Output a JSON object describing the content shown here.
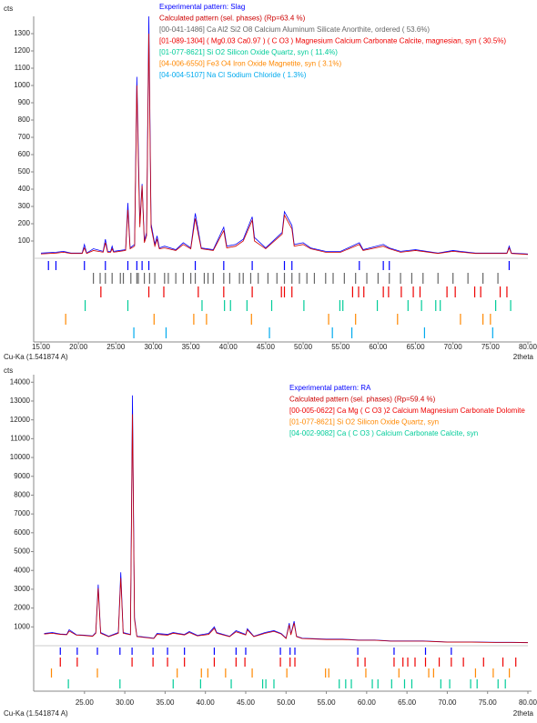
{
  "chart_data": [
    {
      "type": "line",
      "ylabel": "cts",
      "xlabel": "2theta",
      "note": "Cu-Ka (1.541874 A)",
      "xlim": [
        15,
        80
      ],
      "ylim": [
        0,
        1400
      ],
      "xticks": [
        {
          "value": 15,
          "label": "15.00"
        },
        {
          "value": 20,
          "label": "20.00"
        },
        {
          "value": 25,
          "label": "25.00"
        },
        {
          "value": 30,
          "label": "30.00"
        },
        {
          "value": 35,
          "label": "35.00"
        },
        {
          "value": 40,
          "label": "40.00"
        },
        {
          "value": 45,
          "label": "45.00"
        },
        {
          "value": 50,
          "label": "50.00"
        },
        {
          "value": 55,
          "label": "55.00"
        },
        {
          "value": 60,
          "label": "60.00"
        },
        {
          "value": 65,
          "label": "65.00"
        },
        {
          "value": 70,
          "label": "70.00"
        },
        {
          "value": 75,
          "label": "75.00"
        },
        {
          "value": 80,
          "label": "80.00"
        }
      ],
      "yticks": [
        100,
        200,
        300,
        400,
        500,
        600,
        700,
        800,
        900,
        1000,
        1100,
        1200,
        1300
      ],
      "x": [
        15,
        17,
        18,
        19,
        20.5,
        20.8,
        21.1,
        22,
        23.3,
        23.6,
        23.9,
        24.3,
        24.5,
        24.7,
        26.3,
        26.6,
        26.9,
        27.5,
        27.8,
        28.0,
        28.2,
        28.5,
        28.8,
        29.1,
        29.4,
        29.7,
        30.2,
        30.5,
        30.8,
        31.5,
        33,
        34,
        35,
        35.6,
        36.0,
        36.4,
        38,
        39.4,
        39.8,
        41,
        42,
        43.2,
        43.5,
        45,
        47.2,
        47.5,
        48.5,
        48.8,
        50,
        51,
        53,
        55,
        57.5,
        58,
        60.7,
        61.5,
        63,
        65,
        68,
        70,
        73,
        75,
        77.2,
        77.5,
        77.8,
        80
      ],
      "series": [
        {
          "name": "Experimental pattern: Slag",
          "color": "#0000ff",
          "values": [
            30,
            35,
            40,
            30,
            30,
            80,
            30,
            55,
            40,
            110,
            40,
            40,
            70,
            40,
            50,
            320,
            60,
            80,
            1050,
            620,
            200,
            430,
            100,
            150,
            1400,
            200,
            80,
            130,
            60,
            70,
            50,
            90,
            60,
            260,
            160,
            60,
            50,
            180,
            70,
            80,
            110,
            240,
            120,
            60,
            150,
            270,
            190,
            80,
            90,
            60,
            40,
            40,
            90,
            50,
            80,
            60,
            40,
            50,
            30,
            45,
            30,
            30,
            30,
            70,
            30,
            25
          ],
          "peaks": [
            16,
            17,
            20.8,
            23.6,
            26.6,
            27.8,
            28.5,
            29.4,
            35.6,
            39.4,
            43.2,
            47.5,
            48.5,
            57.5,
            60.7,
            61.5,
            77.5
          ]
        },
        {
          "name": "Calculated pattern (sel. phases) (Rp=63.4 %)",
          "color": "#cc0000",
          "values": [
            25,
            30,
            35,
            28,
            28,
            60,
            28,
            45,
            35,
            90,
            35,
            35,
            55,
            35,
            45,
            280,
            55,
            70,
            1000,
            560,
            180,
            420,
            90,
            130,
            1300,
            180,
            70,
            110,
            55,
            60,
            45,
            80,
            55,
            230,
            140,
            55,
            45,
            160,
            60,
            70,
            100,
            220,
            100,
            55,
            140,
            250,
            170,
            70,
            80,
            55,
            35,
            35,
            80,
            45,
            70,
            55,
            35,
            45,
            28,
            40,
            28,
            28,
            28,
            60,
            28,
            22
          ]
        }
      ],
      "phases": [
        {
          "name": "[00-041-1486] Ca Al2 Si2 O8 Calcium Aluminum Silicate Anorthite, ordered ( 53.6%)",
          "color": "#666666",
          "positions": [
            22.0,
            22.9,
            23.6,
            24.5,
            25.6,
            26.0,
            27.0,
            27.8,
            28.0,
            28.8,
            29.5,
            30.2,
            31.5,
            32.0,
            33.0,
            34.0,
            35.0,
            35.6,
            36.8,
            37.3,
            38.0,
            39.4,
            40.2,
            41.5,
            42.0,
            43.0,
            44.0,
            45.3,
            46.5,
            47.5,
            48.5,
            49.5,
            50.5,
            51.5,
            53.0,
            54.0,
            55.5,
            57.0,
            58.5,
            60.0,
            61.5,
            63.0,
            64.5,
            66.0,
            68.0,
            70.0,
            72.0,
            74.0,
            76.0
          ]
        },
        {
          "name": "[01-089-1304] ( Mg0.03 Ca0.97 ) ( C O3 ) Magnesium Calcium Carbonate Calcite, magnesian, syn ( 30.5%)",
          "color": "#ee0000",
          "positions": [
            23.0,
            29.4,
            31.4,
            36.0,
            39.4,
            43.2,
            47.1,
            47.5,
            48.5,
            56.6,
            57.4,
            58.1,
            60.7,
            61.4,
            63.1,
            64.7,
            65.6,
            69.2,
            70.3,
            72.9,
            73.7,
            76.3,
            77.2
          ]
        },
        {
          "name": "[01-077-8621] Si O2 Silicon Oxide Quartz, syn ( 11.4%)",
          "color": "#00cc99",
          "positions": [
            20.9,
            26.6,
            36.5,
            39.5,
            40.3,
            42.5,
            45.8,
            50.1,
            54.9,
            55.3,
            59.9,
            64.0,
            65.8,
            67.7,
            68.3,
            75.7,
            77.7
          ]
        },
        {
          "name": "[04-006-6550] Fe3 O4 Iron Oxide Magnetite, syn ( 3.1%)",
          "color": "#ff8800",
          "positions": [
            18.3,
            30.1,
            35.4,
            37.1,
            43.1,
            53.4,
            57.0,
            62.6,
            71.0,
            74.0,
            75.0
          ]
        },
        {
          "name": "[04-004-5107] Na Cl Sodium Chloride ( 1.3%)",
          "color": "#00aaee",
          "positions": [
            27.4,
            31.7,
            45.5,
            53.9,
            56.5,
            66.2,
            75.3
          ]
        }
      ]
    },
    {
      "type": "line",
      "ylabel": "cts",
      "xlabel": "2theta",
      "note": "Cu-Ka (1.541874 A)",
      "xlim": [
        19.6,
        80
      ],
      "ylim": [
        0,
        14400
      ],
      "xticks": [
        {
          "value": 25,
          "label": "25.00"
        },
        {
          "value": 30,
          "label": "30.00"
        },
        {
          "value": 35,
          "label": "35.00"
        },
        {
          "value": 40,
          "label": "40.00"
        },
        {
          "value": 45,
          "label": "45.00"
        },
        {
          "value": 50,
          "label": "50.00"
        },
        {
          "value": 55,
          "label": "55.00"
        },
        {
          "value": 60,
          "label": "60.00"
        },
        {
          "value": 65,
          "label": "65.00"
        },
        {
          "value": 70,
          "label": "70.00"
        },
        {
          "value": 75,
          "label": "75.00"
        },
        {
          "value": 80,
          "label": "80.00"
        }
      ],
      "yticks": [
        1000,
        2000,
        3000,
        4000,
        5000,
        6000,
        7000,
        8000,
        9000,
        10000,
        11000,
        12000,
        13000,
        14000
      ],
      "x": [
        20,
        21,
        22,
        22.8,
        23.1,
        24,
        25,
        26,
        26.4,
        26.7,
        27.0,
        28,
        29.2,
        29.5,
        29.8,
        30.7,
        30.95,
        31.2,
        31.5,
        32,
        33.6,
        34,
        35.3,
        36,
        37.4,
        38,
        39,
        40.4,
        41.1,
        41.4,
        43,
        43.8,
        45,
        45.2,
        46,
        47.4,
        48.5,
        49.4,
        50,
        50.4,
        50.6,
        51,
        51.3,
        52,
        55,
        57,
        59,
        61,
        63,
        65,
        67,
        70,
        73,
        76,
        78,
        80
      ],
      "series": [
        {
          "name": "Experimental pattern: RA",
          "color": "#0000ff",
          "values": [
            650,
            700,
            620,
            600,
            850,
            580,
            560,
            520,
            700,
            3250,
            700,
            500,
            700,
            3900,
            700,
            600,
            13300,
            1500,
            500,
            480,
            400,
            650,
            600,
            700,
            600,
            750,
            550,
            650,
            1000,
            700,
            500,
            800,
            600,
            900,
            500,
            700,
            800,
            650,
            400,
            1200,
            600,
            1300,
            500,
            400,
            350,
            350,
            300,
            300,
            250,
            250,
            250,
            200,
            200,
            180,
            180,
            170
          ],
          "peaks": [
            22.0,
            24.1,
            26.6,
            29.4,
            30.9,
            33.5,
            35.3,
            37.4,
            41.1,
            43.8,
            45.0,
            49.3,
            50.5,
            51.1,
            58.9,
            63.4,
            67.3,
            70.5
          ]
        },
        {
          "name": "Calculated pattern (sel. phases) (Rp=59.4 %)",
          "color": "#cc0000",
          "values": [
            620,
            660,
            600,
            580,
            780,
            560,
            540,
            500,
            660,
            3050,
            660,
            480,
            660,
            3600,
            660,
            580,
            12300,
            1400,
            480,
            460,
            380,
            600,
            560,
            660,
            570,
            700,
            520,
            600,
            920,
            660,
            480,
            740,
            570,
            840,
            480,
            660,
            760,
            620,
            380,
            1100,
            570,
            1200,
            480,
            380,
            330,
            330,
            290,
            290,
            240,
            240,
            240,
            190,
            190,
            170,
            170,
            160
          ]
        }
      ],
      "phases": [
        {
          "name": "[00-005-0622] Ca Mg ( C O3 )2 Calcium Magnesium Carbonate Dolomite",
          "color": "#ee0000",
          "positions": [
            22.0,
            24.1,
            30.9,
            33.5,
            35.3,
            37.4,
            41.1,
            43.8,
            44.9,
            49.3,
            50.5,
            51.1,
            58.9,
            59.8,
            63.4,
            64.5,
            65.1,
            66.0,
            67.3,
            69.0,
            70.5,
            72.0,
            74.5,
            76.9,
            78.5
          ]
        },
        {
          "name": "[01-077-8621] Si O2 Silicon Oxide Quartz, syn",
          "color": "#ff8800",
          "positions": [
            20.9,
            26.6,
            36.5,
            39.5,
            40.3,
            42.5,
            45.8,
            50.1,
            54.9,
            55.3,
            59.9,
            64.0,
            67.7,
            68.3,
            73.5,
            75.7,
            77.7
          ]
        },
        {
          "name": "[04-002-9082] Ca ( C O3 ) Calcium Carbonate Calcite, syn",
          "color": "#00cc99",
          "positions": [
            23.0,
            29.4,
            36.0,
            39.4,
            43.2,
            47.1,
            47.5,
            48.5,
            56.6,
            57.4,
            58.1,
            60.7,
            61.4,
            63.1,
            64.7,
            65.6,
            69.2,
            70.3,
            72.9,
            73.7,
            76.3,
            77.2
          ]
        }
      ]
    }
  ]
}
